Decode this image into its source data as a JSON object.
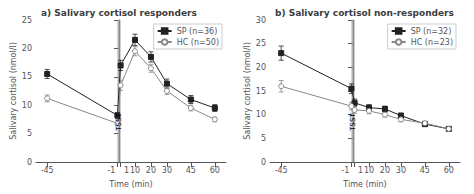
{
  "chart_data": [
    {
      "type": "line",
      "title": "a) Salivary cortisol responders",
      "xlabel": "Time (min)",
      "ylabel": "Salivary cortisol (nmol/l)",
      "x": [
        -45,
        -1,
        1,
        10,
        20,
        30,
        45,
        60
      ],
      "xlim": [
        -52,
        67
      ],
      "xticks": [
        -45,
        -1,
        1,
        10,
        20,
        30,
        45,
        60
      ],
      "ylim": [
        0,
        25
      ],
      "yticks": [
        0,
        5,
        10,
        15,
        20,
        25
      ],
      "grid": false,
      "legend": "upper right",
      "annotations": [
        {
          "text": "TSST",
          "x": [
            -1,
            1
          ],
          "color": "#999999"
        }
      ],
      "series": [
        {
          "name": "SP (n=36)",
          "color": "#222222",
          "marker": "square",
          "values": [
            15.5,
            8.2,
            17.0,
            21.5,
            18.5,
            13.8,
            11.0,
            9.5
          ],
          "yerr": [
            0.8,
            0.5,
            0.9,
            1.0,
            0.9,
            0.8,
            0.7,
            0.6
          ]
        },
        {
          "name": "HC (n=50)",
          "color": "#888888",
          "marker": "open_circle",
          "values": [
            11.2,
            6.8,
            13.5,
            19.5,
            16.5,
            12.5,
            9.5,
            7.5
          ],
          "yerr": [
            0.6,
            0.4,
            0.9,
            0.8,
            0.7,
            0.6,
            0.5,
            0.4
          ]
        }
      ]
    },
    {
      "type": "line",
      "title": "b) Salivary cortisol non-responders",
      "xlabel": "Time (min)",
      "ylabel": "Salivary cortisol (nmol/l)",
      "x": [
        -45,
        -1,
        1,
        10,
        20,
        30,
        45,
        60
      ],
      "xlim": [
        -52,
        67
      ],
      "xticks": [
        -45,
        -1,
        1,
        10,
        20,
        30,
        45,
        60
      ],
      "ylim": [
        0,
        30
      ],
      "yticks": [
        0,
        5,
        10,
        15,
        20,
        25,
        30
      ],
      "grid": false,
      "legend": "upper right",
      "annotations": [
        {
          "text": "TSST",
          "x": [
            -1,
            1
          ],
          "color": "#999999"
        }
      ],
      "series": [
        {
          "name": "SP (n=32)",
          "color": "#222222",
          "marker": "square",
          "values": [
            23.0,
            15.5,
            12.5,
            11.5,
            11.2,
            9.8,
            8.0,
            7.0
          ],
          "yerr": [
            1.5,
            1.0,
            0.8,
            0.6,
            0.6,
            0.5,
            0.5,
            0.4
          ]
        },
        {
          "name": "HC (n=23)",
          "color": "#888888",
          "marker": "open_circle",
          "values": [
            16.0,
            11.8,
            11.0,
            10.8,
            10.0,
            9.0,
            8.2,
            7.0
          ],
          "yerr": [
            1.2,
            0.8,
            0.7,
            0.6,
            0.5,
            0.5,
            0.4,
            0.4
          ]
        }
      ]
    }
  ]
}
